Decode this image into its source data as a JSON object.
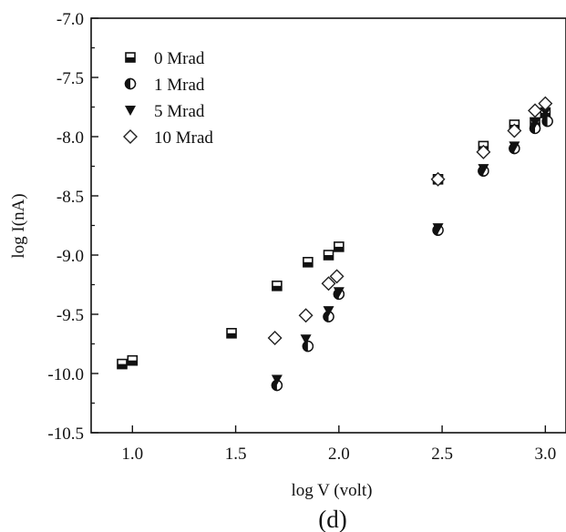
{
  "chart_data": {
    "type": "scatter",
    "xlabel": "log V (volt)",
    "ylabel": "log I(nA)",
    "caption": "(d)",
    "xlim": [
      0.8,
      3.1
    ],
    "ylim": [
      -10.5,
      -7.0
    ],
    "xticks": [
      "1.0",
      "1.5",
      "2.0",
      "2.5",
      "3.0"
    ],
    "xtick_values": [
      1.0,
      1.5,
      2.0,
      2.5,
      3.0
    ],
    "yticks": [
      "-7.0",
      "-7.5",
      "-8.0",
      "-8.5",
      "-9.0",
      "-9.5",
      "-10.0",
      "-10.5"
    ],
    "ytick_values": [
      -7.0,
      -7.5,
      -8.0,
      -8.5,
      -9.0,
      -9.5,
      -10.0,
      -10.5
    ],
    "legend_position": "top-left",
    "series": [
      {
        "name": "0 Mrad",
        "marker": "half-filled-square",
        "points": [
          [
            0.95,
            -9.92
          ],
          [
            1.0,
            -9.89
          ],
          [
            1.48,
            -9.66
          ],
          [
            1.7,
            -9.26
          ],
          [
            1.85,
            -9.06
          ],
          [
            1.95,
            -9.0
          ],
          [
            2.0,
            -8.93
          ],
          [
            2.48,
            -8.36
          ],
          [
            2.7,
            -8.08
          ],
          [
            2.85,
            -7.9
          ],
          [
            2.95,
            -7.88
          ],
          [
            3.0,
            -7.8
          ]
        ]
      },
      {
        "name": "1 Mrad",
        "marker": "half-filled-circle",
        "points": [
          [
            1.7,
            -10.1
          ],
          [
            1.85,
            -9.77
          ],
          [
            1.95,
            -9.52
          ],
          [
            2.0,
            -9.33
          ],
          [
            2.48,
            -8.79
          ],
          [
            2.7,
            -8.29
          ],
          [
            2.85,
            -8.1
          ],
          [
            2.95,
            -7.93
          ],
          [
            3.01,
            -7.87
          ]
        ]
      },
      {
        "name": "5 Mrad",
        "marker": "filled-triangle-down",
        "points": [
          [
            1.7,
            -10.05
          ],
          [
            1.84,
            -9.71
          ],
          [
            1.95,
            -9.47
          ],
          [
            2.0,
            -9.31
          ],
          [
            2.48,
            -8.77
          ],
          [
            2.7,
            -8.27
          ],
          [
            2.85,
            -8.08
          ],
          [
            2.95,
            -7.88
          ],
          [
            3.0,
            -7.79
          ]
        ]
      },
      {
        "name": "10 Mrad",
        "marker": "open-diamond",
        "points": [
          [
            1.69,
            -9.7
          ],
          [
            1.84,
            -9.51
          ],
          [
            1.95,
            -9.24
          ],
          [
            1.99,
            -9.18
          ],
          [
            2.48,
            -8.36
          ],
          [
            2.7,
            -8.13
          ],
          [
            2.85,
            -7.95
          ],
          [
            2.95,
            -7.78
          ],
          [
            3.0,
            -7.72
          ]
        ]
      }
    ]
  }
}
